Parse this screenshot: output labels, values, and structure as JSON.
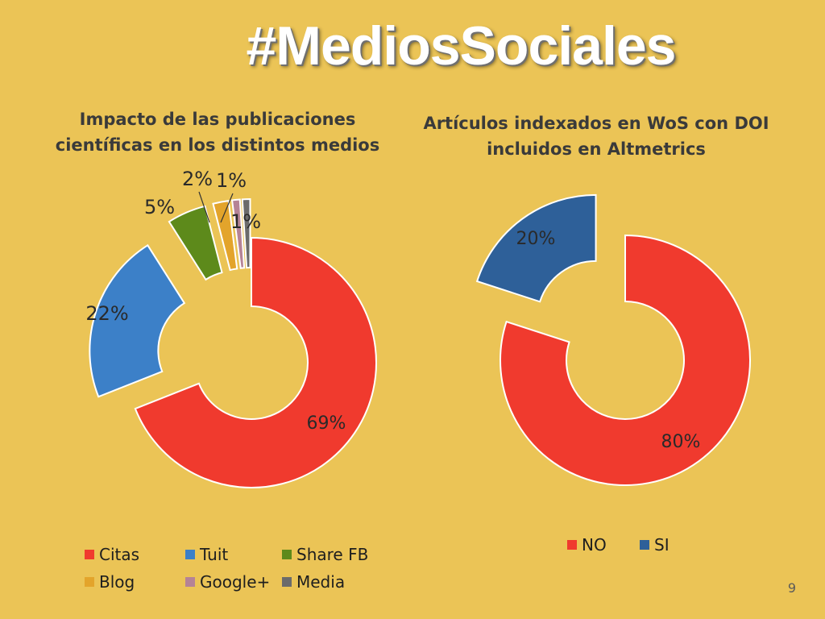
{
  "slide": {
    "title": "#MediosSociales",
    "page_number": "9"
  },
  "chart_data": [
    {
      "type": "pie",
      "title": "Impacto de las publicaciones científicas en los distintos medios",
      "categories": [
        "Citas",
        "Tuit",
        "Share FB",
        "Blog",
        "Google+",
        "Media"
      ],
      "values": [
        69,
        22,
        5,
        2,
        1,
        1
      ],
      "data_labels": [
        "69%",
        "22%",
        "5%",
        "2%",
        "1%",
        "1%"
      ],
      "colors": [
        "#f03a2e",
        "#3c80c8",
        "#5d8a1b",
        "#e3a42b",
        "#b58396",
        "#6b6b6b"
      ],
      "hole": true,
      "exploded": true,
      "legend_position": "bottom"
    },
    {
      "type": "pie",
      "title": "Artículos indexados en WoS con DOI incluidos en Altmetrics",
      "categories": [
        "NO",
        "SI"
      ],
      "values": [
        80,
        20
      ],
      "data_labels": [
        "80%",
        "20%"
      ],
      "colors": [
        "#f03a2e",
        "#2e6099"
      ],
      "hole": true,
      "exploded": true,
      "legend_position": "bottom"
    }
  ]
}
